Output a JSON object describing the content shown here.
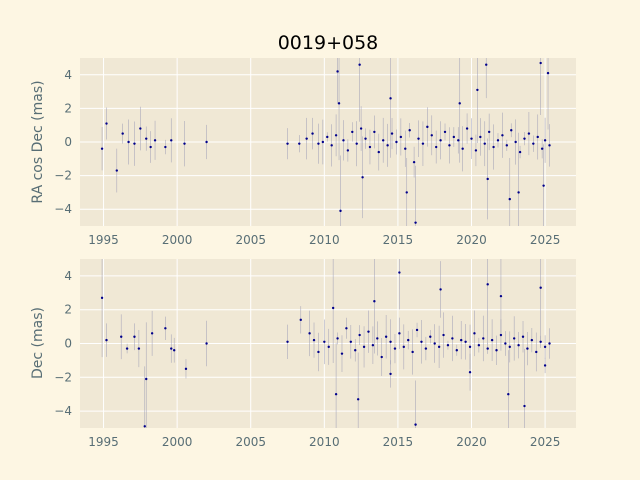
{
  "colors": {
    "figure_background": "#fdf6e3",
    "axes_background": "#f0e8d5",
    "grid": "#ffffff",
    "tick_text": "#586e75",
    "points": "#00008b",
    "error_bars": "#9a9ab4"
  },
  "chart_data": [
    {
      "type": "scatter",
      "title": "0019+058",
      "xlabel": "",
      "ylabel": "RA cos Dec (mas)",
      "xlim": [
        1993.4,
        2027.1
      ],
      "ylim": [
        -5,
        5
      ],
      "xticks": [
        1995,
        2000,
        2005,
        2010,
        2015,
        2020,
        2025
      ],
      "yticks": [
        -4,
        -2,
        0,
        2,
        4
      ],
      "grid": true,
      "series": [
        {
          "x": [
            1994.9,
            1995.2,
            1995.9,
            1996.3,
            1996.7,
            1997.1,
            1997.5,
            1997.9,
            1998.2,
            1998.5,
            1999.2,
            1999.6,
            2000.5,
            2002.0,
            2007.5,
            2008.3,
            2008.8,
            2009.2,
            2009.6,
            2009.9,
            2010.2,
            2010.5,
            2010.8,
            2011.0,
            2011.3,
            2011.6,
            2011.9,
            2012.2,
            2012.5,
            2012.8,
            2013.1,
            2013.4,
            2013.7,
            2014.0,
            2014.3,
            2014.6,
            2014.9,
            2015.2,
            2015.5,
            2015.8,
            2016.1,
            2016.4,
            2016.7,
            2017.0,
            2017.3,
            2017.6,
            2017.9,
            2018.2,
            2018.5,
            2018.8,
            2019.1,
            2019.4,
            2019.7,
            2020.0,
            2020.3,
            2020.6,
            2020.9,
            2021.2,
            2021.5,
            2021.8,
            2022.1,
            2022.4,
            2022.7,
            2023.0,
            2023.3,
            2023.6,
            2023.9,
            2024.2,
            2024.5,
            2024.8,
            2025.0,
            2025.3,
            2011.1,
            2012.4,
            2014.5,
            2016.2,
            2020.4,
            2021.0,
            2022.6,
            2024.7,
            2010.9,
            2012.6,
            2015.6,
            2019.2,
            2021.1,
            2023.2,
            2025.2,
            2024.9
          ],
          "y": [
            -0.4,
            1.1,
            -1.7,
            0.5,
            0.0,
            -0.1,
            0.8,
            0.2,
            -0.3,
            0.1,
            -0.3,
            0.1,
            -0.1,
            0.0,
            -0.1,
            -0.1,
            0.2,
            0.5,
            -0.1,
            0.0,
            0.3,
            -0.2,
            0.4,
            2.3,
            0.1,
            -0.5,
            0.6,
            -0.1,
            0.8,
            0.2,
            -0.3,
            0.6,
            -0.6,
            0.1,
            -0.2,
            0.5,
            0.0,
            0.3,
            -0.4,
            0.7,
            -1.2,
            0.2,
            -0.1,
            0.9,
            0.4,
            -0.3,
            0.1,
            0.6,
            -0.2,
            0.3,
            0.1,
            -0.4,
            0.8,
            0.2,
            -0.5,
            0.3,
            -0.1,
            0.6,
            -0.3,
            0.1,
            0.4,
            -0.2,
            0.7,
            0.0,
            -0.6,
            0.2,
            0.5,
            -0.1,
            0.3,
            -0.4,
            0.1,
            -0.2,
            -4.1,
            4.6,
            2.6,
            -4.8,
            3.1,
            4.6,
            -3.4,
            4.7,
            4.2,
            -2.1,
            -3.0,
            2.3,
            -2.2,
            -3.0,
            4.1,
            -2.6
          ]
        }
      ]
    },
    {
      "type": "scatter",
      "title": "",
      "xlabel": "",
      "ylabel": "Dec (mas)",
      "xlim": [
        1993.4,
        2027.1
      ],
      "ylim": [
        -5,
        5
      ],
      "xticks": [
        1995,
        2000,
        2005,
        2010,
        2015,
        2020,
        2025
      ],
      "yticks": [
        -4,
        -2,
        0,
        2,
        4
      ],
      "grid": true,
      "series": [
        {
          "x": [
            1994.9,
            1995.2,
            1996.2,
            1996.6,
            1997.1,
            1997.4,
            1997.9,
            1998.3,
            1999.2,
            1999.6,
            1999.8,
            2000.6,
            2002.0,
            2007.5,
            2008.4,
            2009.0,
            2009.3,
            2009.6,
            2010.0,
            2010.3,
            2010.6,
            2010.9,
            2011.2,
            2011.5,
            2011.8,
            2012.1,
            2012.4,
            2012.7,
            2013.0,
            2013.3,
            2013.6,
            2013.9,
            2014.2,
            2014.5,
            2014.8,
            2015.1,
            2015.4,
            2015.7,
            2016.0,
            2016.3,
            2016.6,
            2016.9,
            2017.2,
            2017.5,
            2017.8,
            2018.1,
            2018.4,
            2018.7,
            2019.0,
            2019.3,
            2019.6,
            2019.9,
            2020.2,
            2020.5,
            2020.8,
            2021.1,
            2021.4,
            2021.7,
            2022.0,
            2022.3,
            2022.6,
            2022.9,
            2023.2,
            2023.5,
            2023.8,
            2024.1,
            2024.4,
            2024.7,
            2025.0,
            2025.3,
            1997.8,
            2012.3,
            2014.5,
            2015.1,
            2017.9,
            2021.1,
            2022.5,
            2023.6,
            2024.7,
            2016.2,
            2010.8,
            2013.4,
            2019.9,
            2022.0,
            2025.0
          ],
          "y": [
            2.7,
            0.2,
            0.4,
            -0.3,
            0.4,
            -0.3,
            -2.1,
            0.6,
            0.9,
            -0.3,
            -0.4,
            -1.5,
            0.0,
            0.1,
            1.4,
            0.6,
            0.2,
            -0.5,
            0.1,
            -0.2,
            2.1,
            0.3,
            -0.6,
            0.9,
            0.1,
            -0.4,
            0.5,
            -0.2,
            0.7,
            -0.1,
            0.3,
            -0.8,
            0.4,
            0.1,
            -0.3,
            0.6,
            -0.2,
            0.2,
            -0.5,
            0.8,
            0.1,
            -0.3,
            0.4,
            0.0,
            -0.2,
            0.5,
            -0.1,
            0.3,
            -0.4,
            0.2,
            0.1,
            -0.2,
            0.6,
            -0.1,
            0.3,
            -0.3,
            0.2,
            -0.4,
            0.5,
            0.0,
            -0.2,
            0.3,
            -0.1,
            0.4,
            -0.3,
            0.2,
            -0.5,
            0.1,
            -0.2,
            0.0,
            -4.9,
            -3.3,
            -1.8,
            4.2,
            3.2,
            3.5,
            -3.0,
            -3.7,
            3.3,
            -4.8,
            -3.0,
            2.5,
            -1.7,
            2.8,
            -1.3
          ]
        }
      ]
    }
  ]
}
